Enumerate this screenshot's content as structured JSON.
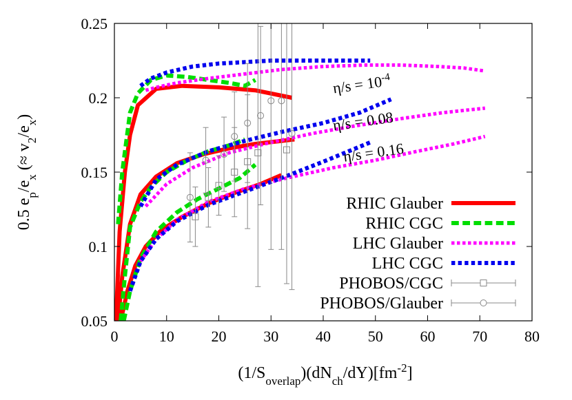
{
  "chart_data": {
    "type": "line",
    "title": "",
    "xlabel": {
      "pre": "(1/S",
      "sub1": "overlap",
      "mid": ")(dN",
      "sub2": "ch",
      "post": "/dY)[fm",
      "sup": "-2",
      "end": "]"
    },
    "ylabel": {
      "a": "0.5 e",
      "sub1": "p",
      "b": "/e",
      "sub2": "x",
      "c": " (≈ v",
      "sub3": "2",
      "d": "/e",
      "sub4": "x",
      "e": ")"
    },
    "xlim": [
      0,
      80
    ],
    "ylim": [
      0.05,
      0.25
    ],
    "xticks": [
      0,
      10,
      20,
      30,
      40,
      50,
      60,
      70,
      80
    ],
    "yticks": [
      0.05,
      0.1,
      0.15,
      0.2,
      0.25
    ],
    "xtick_labels": [
      "0",
      "10",
      "20",
      "30",
      "40",
      "50",
      "60",
      "70",
      "80"
    ],
    "ytick_labels": [
      "0.05",
      "0.1",
      "0.15",
      "0.2",
      "0.25"
    ],
    "annotations": [
      {
        "pre": "η/s = 10",
        "sup": "-4",
        "x": 42,
        "y": 0.203
      },
      {
        "pre": "η/s = 0.08",
        "sup": "",
        "x": 42,
        "y": 0.178
      },
      {
        "pre": "η/s = 0.16",
        "sup": "",
        "x": 44,
        "y": 0.157
      }
    ],
    "legend_position": "bottom-right",
    "series": [
      {
        "name": "RHIC Glauber",
        "color": "#ff0000",
        "style": "solid",
        "width": 6,
        "group": "eta=1e-4",
        "x": [
          0.3,
          1,
          2,
          3,
          4.5,
          8,
          13,
          20,
          27,
          34
        ],
        "y": [
          0.05,
          0.11,
          0.15,
          0.175,
          0.195,
          0.206,
          0.208,
          0.207,
          0.205,
          0.2
        ]
      },
      {
        "name": "RHIC Glauber",
        "color": "#ff0000",
        "style": "solid",
        "width": 6,
        "group": "eta=0.08",
        "x": [
          0.7,
          1.5,
          3,
          5,
          8,
          12,
          17,
          22,
          27,
          34.5
        ],
        "y": [
          0.05,
          0.08,
          0.115,
          0.135,
          0.147,
          0.156,
          0.162,
          0.166,
          0.169,
          0.172
        ]
      },
      {
        "name": "RHIC Glauber",
        "color": "#ff0000",
        "style": "solid",
        "width": 6,
        "group": "eta=0.16",
        "x": [
          1.2,
          2.5,
          4,
          6,
          9,
          13,
          18,
          23,
          28,
          32
        ],
        "y": [
          0.05,
          0.07,
          0.087,
          0.1,
          0.111,
          0.12,
          0.129,
          0.136,
          0.142,
          0.148
        ]
      },
      {
        "name": "RHIC CGC",
        "color": "#00dd00",
        "style": "dashed",
        "width": 6,
        "group": "eta=1e-4",
        "x": [
          0.7,
          1.5,
          3,
          4.5,
          7,
          10,
          14,
          18,
          22,
          25,
          27
        ],
        "y": [
          0.115,
          0.15,
          0.19,
          0.203,
          0.212,
          0.215,
          0.214,
          0.212,
          0.21,
          0.208,
          0.212
        ]
      },
      {
        "name": "RHIC CGC",
        "color": "#00dd00",
        "style": "dashed",
        "width": 6,
        "group": "eta=0.08",
        "x": [
          1.2,
          2,
          3,
          5,
          7,
          10,
          14,
          18,
          22,
          25
        ],
        "y": [
          0.05,
          0.08,
          0.113,
          0.13,
          0.14,
          0.15,
          0.158,
          0.164,
          0.168,
          0.172
        ]
      },
      {
        "name": "RHIC CGC",
        "color": "#00dd00",
        "style": "dashed",
        "width": 6,
        "group": "eta=0.16",
        "x": [
          1.8,
          3,
          5,
          8,
          12,
          16,
          20,
          24,
          27
        ],
        "y": [
          0.05,
          0.07,
          0.092,
          0.11,
          0.123,
          0.132,
          0.139,
          0.146,
          0.155
        ]
      },
      {
        "name": "LHC Glauber",
        "color": "#ff00ff",
        "style": "dotted",
        "width": 5,
        "group": "eta=1e-4",
        "x": [
          6,
          8,
          12,
          18,
          25,
          32,
          40,
          48,
          55,
          62,
          67,
          71
        ],
        "y": [
          0.205,
          0.207,
          0.21,
          0.213,
          0.216,
          0.219,
          0.221,
          0.222,
          0.222,
          0.221,
          0.22,
          0.218
        ]
      },
      {
        "name": "LHC Glauber",
        "color": "#ff00ff",
        "style": "dotted",
        "width": 5,
        "group": "eta=0.08",
        "x": [
          6,
          10,
          15,
          22,
          30,
          38,
          46,
          55,
          63,
          71
        ],
        "y": [
          0.127,
          0.142,
          0.153,
          0.163,
          0.17,
          0.176,
          0.181,
          0.186,
          0.19,
          0.193
        ]
      },
      {
        "name": "LHC Glauber",
        "color": "#ff00ff",
        "style": "dotted",
        "width": 5,
        "group": "eta=0.16",
        "x": [
          5,
          8,
          12,
          18,
          25,
          33,
          42,
          50,
          58,
          65,
          71
        ],
        "y": [
          0.09,
          0.105,
          0.118,
          0.13,
          0.139,
          0.146,
          0.153,
          0.158,
          0.164,
          0.169,
          0.174
        ]
      },
      {
        "name": "LHC CGC",
        "color": "#0000ee",
        "style": "dotted",
        "width": 6,
        "group": "eta=1e-4",
        "x": [
          5,
          7,
          10,
          15,
          20,
          25,
          30,
          35,
          40,
          45,
          49
        ],
        "y": [
          0.208,
          0.213,
          0.217,
          0.221,
          0.223,
          0.224,
          0.225,
          0.225,
          0.225,
          0.225,
          0.225
        ]
      },
      {
        "name": "LHC CGC",
        "color": "#0000ee",
        "style": "dotted",
        "width": 6,
        "group": "eta=0.08",
        "x": [
          5,
          8,
          12,
          18,
          25,
          32,
          40,
          47,
          53
        ],
        "y": [
          0.127,
          0.145,
          0.155,
          0.164,
          0.171,
          0.177,
          0.183,
          0.19,
          0.199
        ]
      },
      {
        "name": "LHC CGC",
        "color": "#0000ee",
        "style": "dotted",
        "width": 6,
        "group": "eta=0.16",
        "x": [
          3,
          5,
          8,
          12,
          18,
          25,
          32,
          40,
          49
        ],
        "y": [
          0.07,
          0.09,
          0.105,
          0.117,
          0.128,
          0.137,
          0.146,
          0.157,
          0.17
        ]
      }
    ],
    "points": [
      {
        "name": "PHOBOS/CGC",
        "marker": "square",
        "color": "#888888",
        "data": [
          {
            "x": 15.5,
            "y": 0.12,
            "err": 0.02
          },
          {
            "x": 18,
            "y": 0.133,
            "err": 0.02
          },
          {
            "x": 20,
            "y": 0.141,
            "err": 0.02
          },
          {
            "x": 23,
            "y": 0.15,
            "err": 0.03
          },
          {
            "x": 25.5,
            "y": 0.157,
            "err": 0.045
          },
          {
            "x": 27.5,
            "y": 0.163,
            "err": 0.09
          },
          {
            "x": 33,
            "y": 0.165,
            "err": 0.09
          }
        ]
      },
      {
        "name": "PHOBOS/Glauber",
        "marker": "circle",
        "color": "#888888",
        "data": [
          {
            "x": 14.5,
            "y": 0.133,
            "err": 0.03
          },
          {
            "x": 17.5,
            "y": 0.158,
            "err": 0.022
          },
          {
            "x": 21,
            "y": 0.162,
            "err": 0.025
          },
          {
            "x": 23,
            "y": 0.174,
            "err": 0.03
          },
          {
            "x": 25.5,
            "y": 0.183,
            "err": 0.04
          },
          {
            "x": 28,
            "y": 0.188,
            "err": 0.06
          },
          {
            "x": 30,
            "y": 0.198,
            "err": 0.1
          },
          {
            "x": 32,
            "y": 0.198,
            "err": 0.1
          },
          {
            "x": 34,
            "y": 0.176,
            "err": 0.105
          }
        ]
      }
    ],
    "legend": [
      {
        "label": "RHIC Glauber",
        "color": "#ff0000",
        "style": "solid",
        "width": 6
      },
      {
        "label": "RHIC CGC",
        "color": "#00dd00",
        "style": "dashed",
        "width": 6
      },
      {
        "label": "LHC Glauber",
        "color": "#ff00ff",
        "style": "dotted",
        "width": 5
      },
      {
        "label": "LHC CGC",
        "color": "#0000ee",
        "style": "dotted",
        "width": 6
      },
      {
        "label": "PHOBOS/CGC",
        "color": "#888888",
        "marker": "square"
      },
      {
        "label": "PHOBOS/Glauber",
        "color": "#888888",
        "marker": "circle"
      }
    ]
  }
}
